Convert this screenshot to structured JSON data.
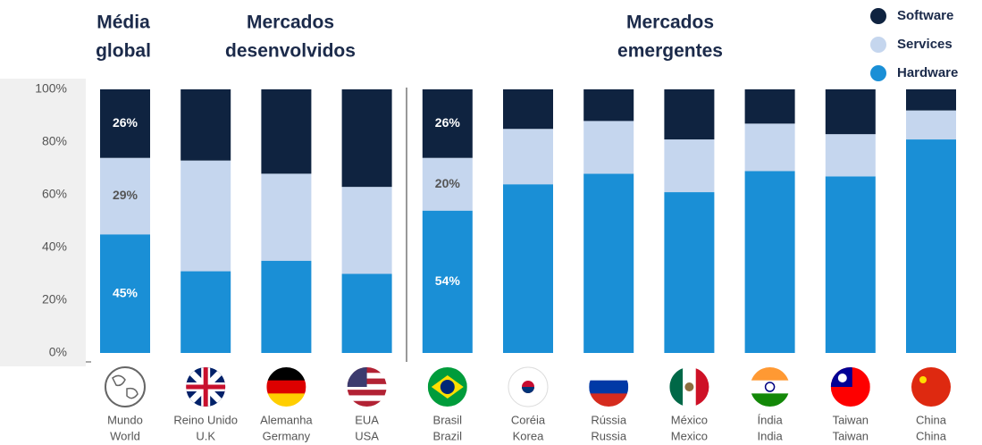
{
  "chart_data": {
    "type": "stacked_bar",
    "group_labels": [
      [
        "Média",
        "global"
      ],
      [
        "Mercados",
        "desenvolvidos"
      ],
      [
        "Mercados",
        "emergentes"
      ]
    ],
    "categories": [
      "Mundo",
      "Reino Unido",
      "Alemanha",
      "EUA",
      "Brasil",
      "Coréia",
      "Rússia",
      "México",
      "Índia",
      "Taiwan",
      "China"
    ],
    "categories_english": [
      "World",
      "U.K",
      "Germany",
      "USA",
      "Brazil",
      "Korea",
      "Russia",
      "Mexico",
      "India",
      "Taiwan",
      "China"
    ],
    "series": [
      {
        "name": "Hardware",
        "color": "#1a8fd6",
        "values": [
          45,
          31,
          35,
          30,
          54,
          64,
          68,
          61,
          69,
          67,
          81
        ],
        "value_labels": [
          "45%",
          null,
          null,
          null,
          "54%",
          null,
          null,
          null,
          null,
          null,
          null
        ]
      },
      {
        "name": "Services",
        "color": "#c5d6ee",
        "values": [
          29,
          42,
          33,
          33,
          20,
          21,
          20,
          20,
          18,
          16,
          11
        ],
        "value_labels": [
          "29%",
          null,
          null,
          null,
          "20%",
          null,
          null,
          null,
          null,
          null,
          null
        ]
      },
      {
        "name": "Software",
        "color": "#0f2340",
        "values": [
          26,
          27,
          32,
          37,
          26,
          15,
          12,
          19,
          13,
          17,
          8
        ],
        "value_labels": [
          "26%",
          null,
          null,
          null,
          "26%",
          null,
          null,
          null,
          null,
          null,
          null
        ]
      }
    ],
    "ylim": [
      0,
      100
    ],
    "yticks": [
      {
        "value": 0,
        "label": "0%"
      },
      {
        "value": 20,
        "label": "20%"
      },
      {
        "value": 40,
        "label": "40%"
      },
      {
        "value": 60,
        "label": "60%"
      },
      {
        "value": 80,
        "label": "80%"
      },
      {
        "value": 100,
        "label": "100%"
      }
    ],
    "legend": "top-right"
  }
}
